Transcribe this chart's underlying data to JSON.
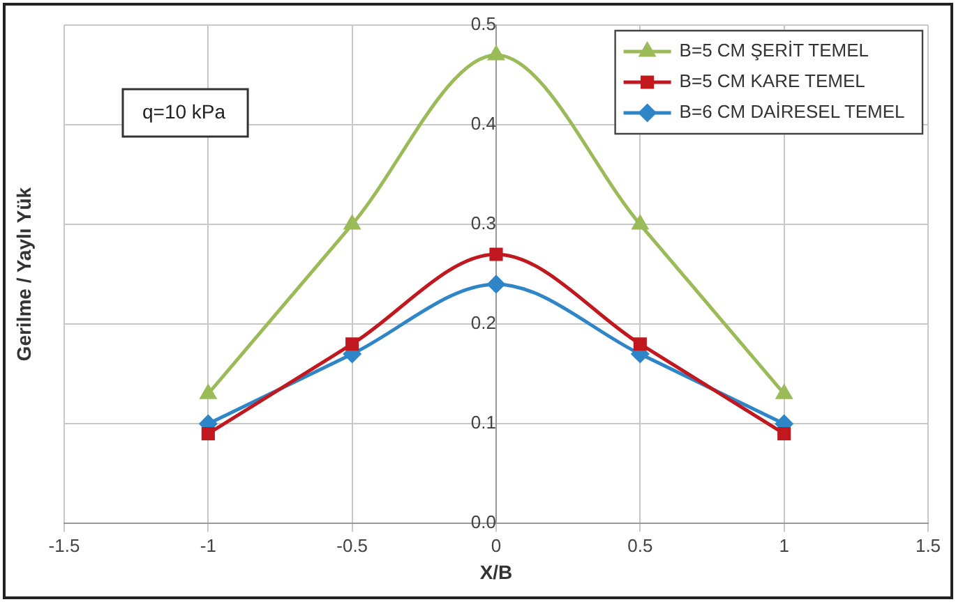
{
  "chart_data": {
    "type": "line",
    "xlabel": "X/B",
    "ylabel": "Gerilme / Yaylı Yük",
    "x": [
      -1,
      -0.5,
      0,
      0.5,
      1
    ],
    "series": [
      {
        "name": "B=5 CM ŞERİT TEMEL",
        "color": "#9bbb59",
        "marker": "triangle",
        "values": [
          0.13,
          0.3,
          0.47,
          0.3,
          0.13
        ]
      },
      {
        "name": "B=5 CM KARE TEMEL",
        "color": "#c0181e",
        "marker": "square",
        "values": [
          0.09,
          0.18,
          0.27,
          0.18,
          0.09
        ]
      },
      {
        "name": "B=6 CM DAİRESEL TEMEL",
        "color": "#2e86c8",
        "marker": "diamond",
        "values": [
          0.1,
          0.17,
          0.24,
          0.17,
          0.1
        ]
      }
    ],
    "xlim": [
      -1.5,
      1.5
    ],
    "xticks": [
      -1.5,
      -1,
      -0.5,
      0,
      0.5,
      1,
      1.5
    ],
    "ylim": [
      0,
      0.5
    ],
    "yticks": [
      {
        "value": 0,
        "label": "0.0"
      },
      0.1,
      0.2,
      0.3,
      0.4,
      0.5
    ],
    "grid": true,
    "legend": "top right",
    "annotations": [
      "q=10 kPa"
    ]
  }
}
